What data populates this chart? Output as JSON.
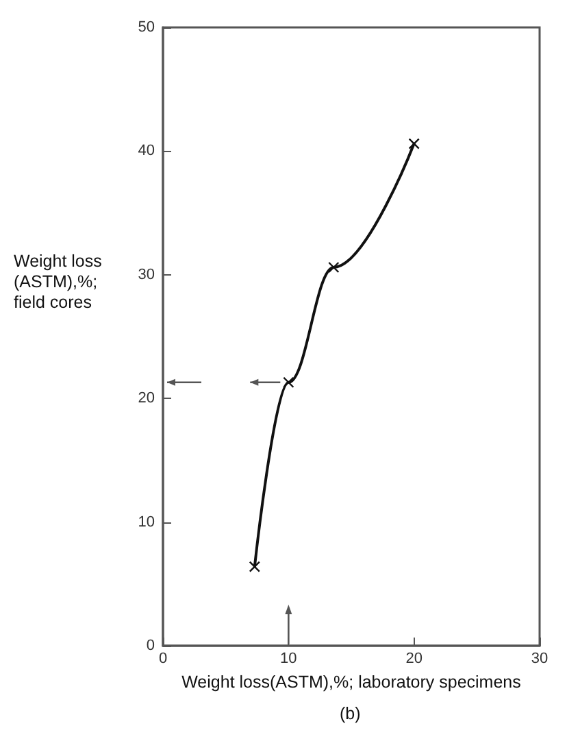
{
  "chart_data": {
    "type": "line",
    "xlabel": "Weight loss(ASTM),%; laboratory specimens",
    "ylabel": "Weight loss\n(ASTM),%;\nfield cores",
    "annotations": [
      "(b)"
    ],
    "series": [
      {
        "x": [
          7.3,
          10,
          13.6,
          20
        ],
        "values": [
          6.4,
          21.3,
          30.6,
          40.6
        ],
        "color": "#111111"
      }
    ],
    "xlim": [
      0,
      30
    ],
    "xticks": [
      0,
      10,
      20,
      30
    ],
    "ylim": [
      0,
      50
    ],
    "yticks": [
      0,
      10,
      20,
      30,
      40,
      50
    ],
    "marker": "cross",
    "line_style": "solid",
    "grid": false
  }
}
